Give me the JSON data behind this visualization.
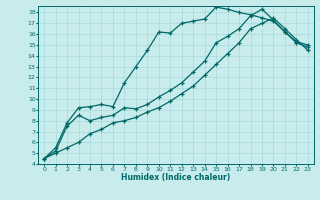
{
  "title": "",
  "xlabel": "Humidex (Indice chaleur)",
  "bg_color": "#c8ecec",
  "grid_color": "#a8d8d8",
  "line_color": "#006868",
  "xlim": [
    -0.5,
    23.5
  ],
  "ylim": [
    4,
    18.6
  ],
  "x_ticks": [
    0,
    1,
    2,
    3,
    4,
    5,
    6,
    7,
    8,
    9,
    10,
    11,
    12,
    13,
    14,
    15,
    16,
    17,
    18,
    19,
    20,
    21,
    22,
    23
  ],
  "y_ticks": [
    4,
    5,
    6,
    7,
    8,
    9,
    10,
    11,
    12,
    13,
    14,
    15,
    16,
    17,
    18
  ],
  "line1_x": [
    0,
    1,
    2,
    3,
    4,
    5,
    6,
    7,
    8,
    9,
    10,
    11,
    12,
    13,
    14,
    15,
    16,
    17,
    18,
    19,
    20,
    21,
    22,
    23
  ],
  "line1_y": [
    4.5,
    5.5,
    7.8,
    9.2,
    9.3,
    9.5,
    9.3,
    11.5,
    13.0,
    14.5,
    16.2,
    16.1,
    17.0,
    17.2,
    17.4,
    18.5,
    18.3,
    18.0,
    17.8,
    17.5,
    17.2,
    16.2,
    15.3,
    15.0
  ],
  "line2_x": [
    0,
    1,
    2,
    3,
    4,
    5,
    6,
    7,
    8,
    9,
    10,
    11,
    12,
    13,
    14,
    15,
    16,
    17,
    18,
    19,
    20,
    21,
    22,
    23
  ],
  "line2_y": [
    4.5,
    5.2,
    7.5,
    8.5,
    8.0,
    8.3,
    8.5,
    9.2,
    9.1,
    9.5,
    10.2,
    10.8,
    11.5,
    12.5,
    13.5,
    15.2,
    15.8,
    16.5,
    17.7,
    18.3,
    17.3,
    16.2,
    15.2,
    14.8
  ],
  "line3_x": [
    0,
    1,
    2,
    3,
    4,
    5,
    6,
    7,
    8,
    9,
    10,
    11,
    12,
    13,
    14,
    15,
    16,
    17,
    18,
    19,
    20,
    21,
    22,
    23
  ],
  "line3_y": [
    4.5,
    5.0,
    5.5,
    6.0,
    6.8,
    7.2,
    7.8,
    8.0,
    8.3,
    8.8,
    9.2,
    9.8,
    10.5,
    11.2,
    12.2,
    13.2,
    14.2,
    15.2,
    16.5,
    17.0,
    17.5,
    16.5,
    15.5,
    14.5
  ]
}
